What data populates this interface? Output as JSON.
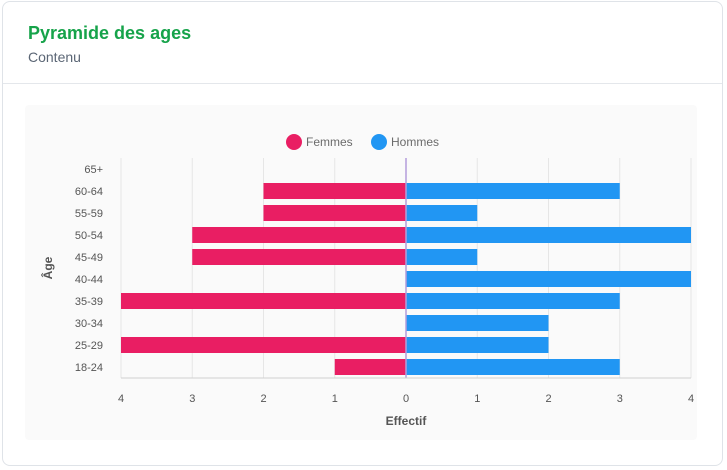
{
  "card": {
    "title": "Pyramide des ages",
    "subtitle": "Contenu"
  },
  "chart_data": {
    "type": "bar",
    "orientation": "horizontal",
    "layout": "population-pyramid",
    "categories": [
      "65+",
      "60-64",
      "55-59",
      "50-54",
      "45-49",
      "40-44",
      "35-39",
      "30-34",
      "25-29",
      "18-24"
    ],
    "series": [
      {
        "name": "Femmes",
        "color": "#e91e63",
        "side": "left",
        "values": [
          0,
          2,
          2,
          3,
          3,
          0,
          4,
          0,
          4,
          1
        ]
      },
      {
        "name": "Hommes",
        "color": "#2196f3",
        "side": "right",
        "values": [
          0,
          3,
          1,
          4,
          1,
          4,
          3,
          2,
          2,
          3
        ]
      }
    ],
    "xlabel": "Effectif",
    "ylabel": "Âge",
    "xlim": [
      -4,
      4
    ],
    "x_ticks": [
      {
        "value": -4,
        "label": "4"
      },
      {
        "value": -3,
        "label": "3"
      },
      {
        "value": -2,
        "label": "2"
      },
      {
        "value": -1,
        "label": "1"
      },
      {
        "value": 0,
        "label": "0"
      },
      {
        "value": 1,
        "label": "1"
      },
      {
        "value": 2,
        "label": "2"
      },
      {
        "value": 3,
        "label": "3"
      },
      {
        "value": 4,
        "label": "4"
      }
    ],
    "grid": true,
    "legend_position": "top-center",
    "zero_line_color": "#b39ddb"
  }
}
